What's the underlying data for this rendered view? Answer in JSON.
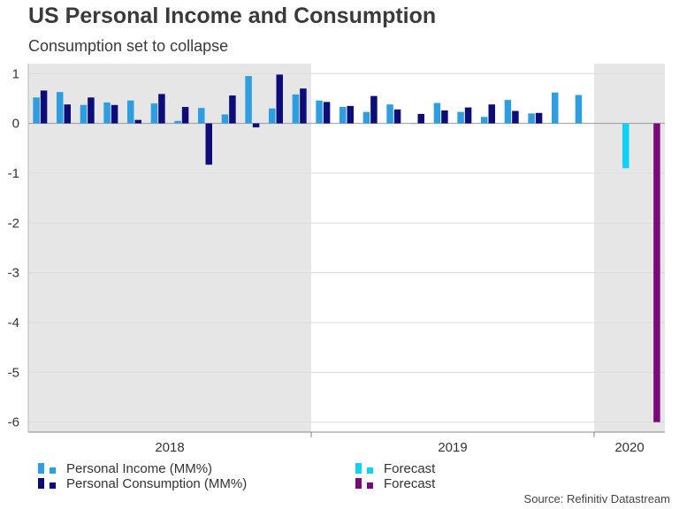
{
  "title": "US Personal Income and Consumption",
  "subtitle": "Consumption set to collapse",
  "source": "Source: Refinitiv Datastream",
  "colors": {
    "income": "#2e9ee0",
    "consumption": "#0d0d7a",
    "income_forecast": "#0fd0f5",
    "consumption_forecast": "#7a0a7a",
    "shade": "#e6e6e6",
    "grid": "#dcdcdc"
  },
  "legend": [
    {
      "label": "Personal Income (MM%)",
      "color": "#2e9ee0"
    },
    {
      "label": "Personal Consumption (MM%)",
      "color": "#0d0d7a"
    },
    {
      "label": "Forecast",
      "color": "#0fd0f5"
    },
    {
      "label": "Forecast",
      "color": "#7a0a7a"
    }
  ],
  "chart_data": {
    "type": "bar",
    "ylim": [
      -6.2,
      1.2
    ],
    "yticks": [
      1,
      0,
      -1,
      -2,
      -3,
      -4,
      -5,
      -6
    ],
    "grid": true,
    "legend_position": "bottom",
    "year_labels": [
      "2018",
      "2019",
      "2020"
    ],
    "shaded_years": [
      "2018",
      "2020"
    ],
    "categories": [
      "2018-01",
      "2018-02",
      "2018-03",
      "2018-04",
      "2018-05",
      "2018-06",
      "2018-07",
      "2018-08",
      "2018-09",
      "2018-10",
      "2018-11",
      "2018-12",
      "2019-01",
      "2019-02",
      "2019-03",
      "2019-04",
      "2019-05",
      "2019-06",
      "2019-07",
      "2019-08",
      "2019-09",
      "2019-10",
      "2019-11",
      "2019-12",
      "2020-01",
      "2020-02",
      "2020-03"
    ],
    "series": [
      {
        "name": "Personal Income (MM%)",
        "values": [
          0.52,
          0.63,
          0.37,
          0.42,
          0.46,
          0.4,
          0.05,
          0.31,
          0.18,
          0.95,
          0.3,
          0.58,
          0.46,
          0.33,
          0.23,
          0.38,
          0.0,
          0.41,
          0.23,
          0.13,
          0.47,
          0.2,
          0.62,
          0.57,
          null,
          null,
          null
        ]
      },
      {
        "name": "Personal Consumption (MM%)",
        "values": [
          0.66,
          0.38,
          0.52,
          0.37,
          0.07,
          0.59,
          0.33,
          -0.83,
          0.56,
          -0.08,
          0.98,
          0.7,
          0.43,
          0.35,
          0.55,
          0.28,
          0.19,
          0.26,
          0.32,
          0.38,
          0.25,
          0.21,
          null,
          null,
          null,
          null,
          null
        ]
      },
      {
        "name": "Forecast",
        "values": [
          null,
          null,
          null,
          null,
          null,
          null,
          null,
          null,
          null,
          null,
          null,
          null,
          null,
          null,
          null,
          null,
          null,
          null,
          null,
          null,
          null,
          null,
          null,
          null,
          null,
          -0.9,
          null
        ]
      },
      {
        "name": "Forecast",
        "values": [
          null,
          null,
          null,
          null,
          null,
          null,
          null,
          null,
          null,
          null,
          null,
          null,
          null,
          null,
          null,
          null,
          null,
          null,
          null,
          null,
          null,
          null,
          null,
          null,
          null,
          null,
          -6.0
        ]
      }
    ]
  }
}
